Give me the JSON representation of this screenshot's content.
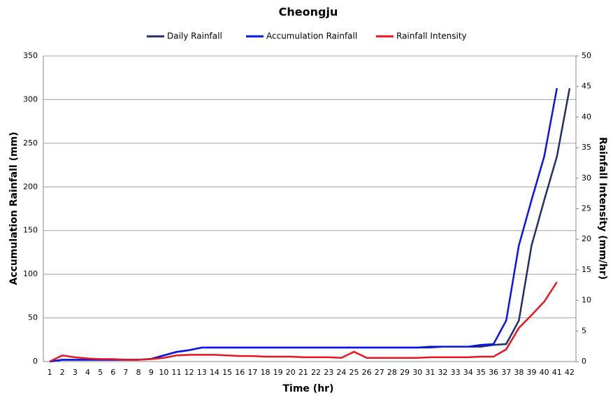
{
  "chart_data": {
    "type": "line",
    "title": "Cheongju",
    "x_label": "Time (hr)",
    "y_label": "Accumulation Rainfall (mm)",
    "y2_label": "Rainfall Intensity (mm/hr)",
    "categories": [
      "1",
      "2",
      "3",
      "4",
      "5",
      "6",
      "7",
      "8",
      "9",
      "10",
      "11",
      "12",
      "13",
      "14",
      "15",
      "16",
      "17",
      "18",
      "19",
      "20",
      "21",
      "22",
      "23",
      "24",
      "25",
      "26",
      "27",
      "28",
      "29",
      "30",
      "31",
      "32",
      "33",
      "34",
      "35",
      "36",
      "37",
      "38",
      "39",
      "40",
      "41",
      "42"
    ],
    "series": [
      {
        "name": "Daily Rainfall",
        "color": "#1f2f6b",
        "values": [
          0,
          2,
          2,
          2,
          2,
          2,
          2,
          2,
          3,
          7,
          11,
          13,
          16,
          16,
          16,
          16,
          16,
          16,
          16,
          16,
          16,
          16,
          16,
          16,
          16,
          16,
          16,
          16,
          16,
          16,
          16,
          17,
          17,
          17,
          17,
          19,
          20,
          47,
          133,
          185,
          235,
          313
        ]
      },
      {
        "name": "Accumulation Rainfall",
        "color": "#0a14e6",
        "values": [
          0,
          2,
          2,
          2,
          2,
          2,
          2,
          2,
          3,
          7,
          11,
          13,
          16,
          16,
          16,
          16,
          16,
          16,
          16,
          16,
          16,
          16,
          16,
          16,
          16,
          16,
          16,
          16,
          16,
          16,
          17,
          17,
          17,
          17,
          19,
          20,
          47,
          133,
          185,
          235,
          313,
          null
        ]
      },
      {
        "name": "Rainfall Intensity",
        "color": "#e8141e",
        "axis": "y2",
        "values": [
          0,
          1.0,
          0.7,
          0.5,
          0.4,
          0.4,
          0.3,
          0.3,
          0.4,
          0.6,
          1.0,
          1.1,
          1.1,
          1.1,
          1.0,
          0.9,
          0.9,
          0.8,
          0.8,
          0.8,
          0.7,
          0.7,
          0.7,
          0.6,
          1.6,
          0.6,
          0.6,
          0.6,
          0.6,
          0.6,
          0.7,
          0.7,
          0.7,
          0.7,
          0.8,
          0.8,
          2.0,
          5.5,
          7.6,
          9.8,
          13.0,
          null
        ]
      }
    ],
    "ylim": [
      0,
      350
    ],
    "yticks": [
      0,
      50,
      100,
      150,
      200,
      250,
      300,
      350
    ],
    "y2lim": [
      0,
      50
    ],
    "y2ticks": [
      0,
      5,
      10,
      15,
      20,
      25,
      30,
      35,
      40,
      45,
      50
    ],
    "grid": true,
    "legend": "top"
  }
}
